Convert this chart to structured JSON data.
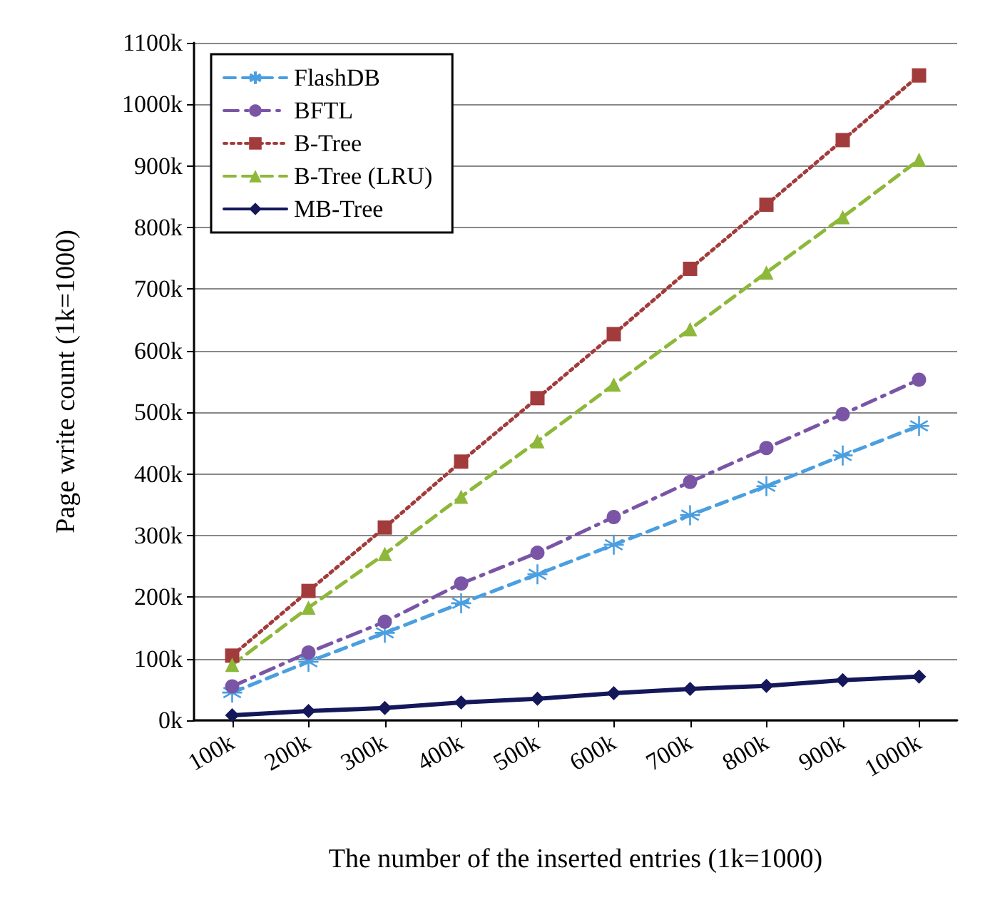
{
  "chart_data": {
    "type": "line",
    "xlabel": "The number of the inserted entries (1k=1000)",
    "ylabel": "Page write count (1k=1000)",
    "categories": [
      "100k",
      "200k",
      "300k",
      "400k",
      "500k",
      "600k",
      "700k",
      "800k",
      "900k",
      "1000k"
    ],
    "ylim": [
      0,
      1100
    ],
    "yticks": [
      {
        "value": 0,
        "label": "0k"
      },
      {
        "value": 100,
        "label": "100k"
      },
      {
        "value": 200,
        "label": "200k"
      },
      {
        "value": 300,
        "label": "300k"
      },
      {
        "value": 400,
        "label": "400k"
      },
      {
        "value": 500,
        "label": "500k"
      },
      {
        "value": 600,
        "label": "600k"
      },
      {
        "value": 700,
        "label": "700k"
      },
      {
        "value": 800,
        "label": "800k"
      },
      {
        "value": 900,
        "label": "900k"
      },
      {
        "value": 1000,
        "label": "1000k"
      },
      {
        "value": 1100,
        "label": "1100k"
      }
    ],
    "grid": "y",
    "legend": "top left",
    "series": [
      {
        "name": "FlashDB",
        "color": "#4a9fe0",
        "marker": "cross",
        "line_style": "dashed",
        "values": [
          45,
          95,
          142,
          190,
          237,
          285,
          333,
          380,
          430,
          478
        ]
      },
      {
        "name": "BFTL",
        "color": "#7a55a6",
        "marker": "circle",
        "line_style": "dashdot",
        "values": [
          55,
          110,
          160,
          222,
          272,
          330,
          387,
          442,
          497,
          553
        ]
      },
      {
        "name": "B-Tree",
        "color": "#a23b3b",
        "marker": "square",
        "line_style": "dotted",
        "values": [
          105,
          210,
          313,
          420,
          523,
          627,
          733,
          837,
          942,
          1047
        ]
      },
      {
        "name": "B-Tree (LRU)",
        "color": "#8db83a",
        "marker": "triangle",
        "line_style": "dashed",
        "values": [
          90,
          183,
          270,
          363,
          453,
          545,
          635,
          727,
          817,
          910
        ]
      },
      {
        "name": "MB-Tree",
        "color": "#14185a",
        "marker": "diamond",
        "line_style": "solid",
        "values": [
          8,
          15,
          20,
          29,
          35,
          44,
          51,
          56,
          65,
          71
        ]
      }
    ]
  }
}
